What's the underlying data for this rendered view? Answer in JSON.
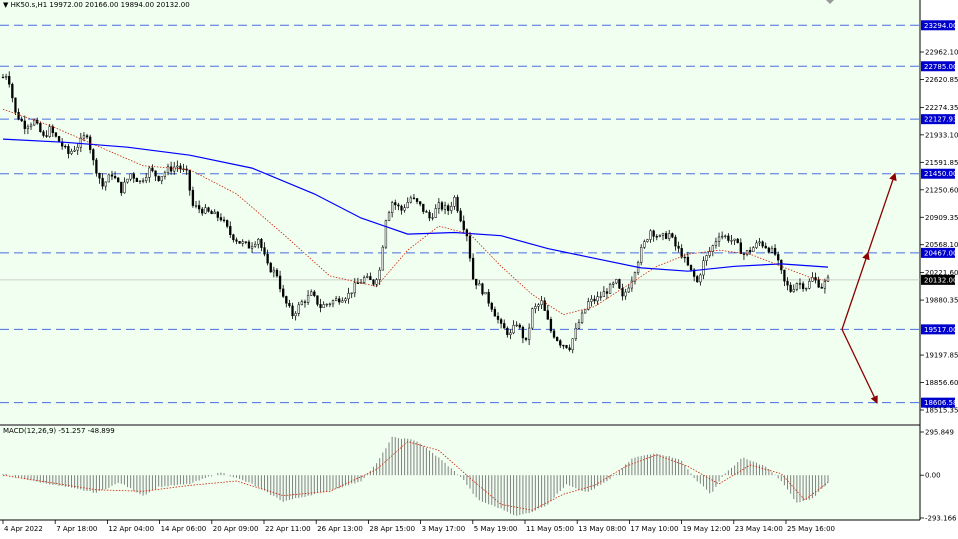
{
  "header": {
    "symbol_info": "HK50.s,H1  19972.00 20166.00 19894.00 20132.00"
  },
  "macd_header": "MACD(12,26,9) -51.257 -48.899",
  "colors": {
    "background": "#f0fff0",
    "ma_slow": "#0000ff",
    "ma_fast": "#cc2200",
    "level_line": "#4a6ee0",
    "label_bg": "#0000cc",
    "arrow": "#8b0000",
    "candle": "#000000"
  },
  "chart_data": [
    {
      "type": "candlestick",
      "title": "HK50.s,H1",
      "ylim": [
        18350,
        23400
      ],
      "yticks": [
        "22962.10",
        "22620.85",
        "22274.35",
        "21933.10",
        "21591.85",
        "21250.60",
        "20909.35",
        "20568.10",
        "20221.60",
        "19880.35",
        "19197.85",
        "18856.60",
        "18515.35"
      ],
      "ytick_values": [
        22962.1,
        22620.85,
        22274.35,
        21933.1,
        21591.85,
        21250.6,
        20909.35,
        20568.1,
        20221.6,
        19880.35,
        19197.85,
        18856.6,
        18515.35
      ],
      "xticks": [
        "4 Apr 2022",
        "7 Apr 18:00",
        "12 Apr 04:00",
        "14 Apr 06:00",
        "20 Apr 09:00",
        "22 Apr 11:00",
        "26 Apr 13:00",
        "28 Apr 15:00",
        "3 May 17:00",
        "5 May 19:00",
        "11 May 05:00",
        "13 May 08:00",
        "17 May 10:00",
        "19 May 12:00",
        "23 May 14:00",
        "25 May 16:00"
      ],
      "levels": [
        {
          "value": 23294.0,
          "label": "23294.00"
        },
        {
          "value": 22785.0,
          "label": "22785.00"
        },
        {
          "value": 22127.93,
          "label": "22127.93"
        },
        {
          "value": 21450.0,
          "label": "21450.00"
        },
        {
          "value": 20467.0,
          "label": "20467.00"
        },
        {
          "value": 19517.0,
          "label": "19517.00"
        },
        {
          "value": 18606.58,
          "label": "18606.58"
        }
      ],
      "current_price": {
        "value": 20132.0,
        "label": "20132.00"
      },
      "price_path": [
        [
          0,
          22650
        ],
        [
          3,
          22700
        ],
        [
          8,
          22200
        ],
        [
          14,
          22050
        ],
        [
          20,
          22100
        ],
        [
          26,
          21900
        ],
        [
          30,
          22000
        ],
        [
          36,
          21850
        ],
        [
          42,
          21700
        ],
        [
          48,
          21800
        ],
        [
          54,
          21950
        ],
        [
          58,
          21600
        ],
        [
          64,
          21300
        ],
        [
          70,
          21450
        ],
        [
          76,
          21250
        ],
        [
          82,
          21450
        ],
        [
          88,
          21350
        ],
        [
          94,
          21500
        ],
        [
          100,
          21400
        ],
        [
          106,
          21500
        ],
        [
          112,
          21550
        ],
        [
          118,
          21450
        ],
        [
          122,
          21050
        ],
        [
          128,
          21000
        ],
        [
          134,
          20950
        ],
        [
          140,
          20900
        ],
        [
          146,
          20700
        ],
        [
          152,
          20600
        ],
        [
          158,
          20550
        ],
        [
          164,
          20650
        ],
        [
          170,
          20300
        ],
        [
          176,
          20200
        ],
        [
          180,
          19900
        ],
        [
          186,
          19700
        ],
        [
          192,
          19850
        ],
        [
          198,
          19950
        ],
        [
          204,
          19800
        ],
        [
          210,
          19850
        ],
        [
          216,
          19900
        ],
        [
          222,
          19950
        ],
        [
          226,
          20050
        ],
        [
          232,
          20150
        ],
        [
          238,
          20100
        ],
        [
          242,
          20250
        ],
        [
          246,
          20900
        ],
        [
          250,
          21100
        ],
        [
          256,
          21000
        ],
        [
          262,
          21150
        ],
        [
          268,
          21050
        ],
        [
          274,
          20900
        ],
        [
          280,
          21050
        ],
        [
          286,
          21000
        ],
        [
          290,
          21150
        ],
        [
          294,
          20900
        ],
        [
          298,
          20700
        ],
        [
          302,
          20150
        ],
        [
          308,
          20000
        ],
        [
          314,
          19800
        ],
        [
          320,
          19550
        ],
        [
          326,
          19450
        ],
        [
          330,
          19600
        ],
        [
          336,
          19350
        ],
        [
          340,
          19750
        ],
        [
          346,
          19850
        ],
        [
          352,
          19500
        ],
        [
          358,
          19350
        ],
        [
          364,
          19300
        ],
        [
          370,
          19600
        ],
        [
          376,
          19850
        ],
        [
          382,
          19900
        ],
        [
          388,
          20000
        ],
        [
          394,
          20100
        ],
        [
          398,
          19900
        ],
        [
          404,
          20150
        ],
        [
          410,
          20500
        ],
        [
          416,
          20750
        ],
        [
          422,
          20650
        ],
        [
          428,
          20700
        ],
        [
          432,
          20550
        ],
        [
          436,
          20450
        ],
        [
          440,
          20300
        ],
        [
          446,
          20100
        ],
        [
          450,
          20350
        ],
        [
          456,
          20550
        ],
        [
          460,
          20700
        ],
        [
          466,
          20650
        ],
        [
          470,
          20600
        ],
        [
          476,
          20450
        ],
        [
          480,
          20500
        ],
        [
          486,
          20600
        ],
        [
          490,
          20550
        ],
        [
          496,
          20450
        ],
        [
          502,
          20100
        ],
        [
          506,
          20000
        ],
        [
          510,
          20100
        ],
        [
          516,
          20050
        ],
        [
          520,
          20150
        ],
        [
          526,
          20050
        ],
        [
          530,
          20132
        ]
      ],
      "ma_slow": [
        [
          0,
          21880
        ],
        [
          40,
          21840
        ],
        [
          80,
          21780
        ],
        [
          120,
          21680
        ],
        [
          160,
          21520
        ],
        [
          200,
          21200
        ],
        [
          230,
          20900
        ],
        [
          260,
          20700
        ],
        [
          290,
          20720
        ],
        [
          320,
          20680
        ],
        [
          350,
          20520
        ],
        [
          380,
          20400
        ],
        [
          410,
          20280
        ],
        [
          440,
          20240
        ],
        [
          470,
          20300
        ],
        [
          500,
          20330
        ],
        [
          530,
          20290
        ]
      ],
      "ma_fast": [
        [
          0,
          22250
        ],
        [
          30,
          22050
        ],
        [
          60,
          21800
        ],
        [
          90,
          21550
        ],
        [
          120,
          21500
        ],
        [
          150,
          21200
        ],
        [
          180,
          20700
        ],
        [
          210,
          20180
        ],
        [
          240,
          20050
        ],
        [
          260,
          20500
        ],
        [
          280,
          20800
        ],
        [
          300,
          20700
        ],
        [
          320,
          20300
        ],
        [
          340,
          19950
        ],
        [
          360,
          19700
        ],
        [
          380,
          19800
        ],
        [
          400,
          20050
        ],
        [
          420,
          20300
        ],
        [
          440,
          20450
        ],
        [
          460,
          20500
        ],
        [
          480,
          20450
        ],
        [
          500,
          20300
        ],
        [
          520,
          20150
        ],
        [
          530,
          20120
        ]
      ],
      "projection": {
        "from": 19517.0,
        "up_mid": 20467.0,
        "up_target": 21450.0,
        "down_target": 18606.58
      }
    },
    {
      "type": "bar",
      "title": "MACD(12,26,9) -51.257 -48.899",
      "ylim": [
        -293.166,
        295.849
      ],
      "yticks": [
        "295.849",
        "0.00",
        "-293.166"
      ],
      "ytick_values": [
        295.849,
        0,
        -293.166
      ],
      "macd_path": [
        [
          0,
          10
        ],
        [
          20,
          -40
        ],
        [
          45,
          -90
        ],
        [
          60,
          -120
        ],
        [
          75,
          -50
        ],
        [
          90,
          -140
        ],
        [
          100,
          -80
        ],
        [
          120,
          -60
        ],
        [
          140,
          20
        ],
        [
          160,
          -60
        ],
        [
          180,
          -180
        ],
        [
          200,
          -130
        ],
        [
          215,
          -90
        ],
        [
          230,
          -40
        ],
        [
          240,
          80
        ],
        [
          250,
          260
        ],
        [
          265,
          240
        ],
        [
          280,
          120
        ],
        [
          295,
          -20
        ],
        [
          305,
          -170
        ],
        [
          320,
          -230
        ],
        [
          330,
          -280
        ],
        [
          340,
          -250
        ],
        [
          350,
          -200
        ],
        [
          362,
          -60
        ],
        [
          375,
          -120
        ],
        [
          390,
          -30
        ],
        [
          405,
          120
        ],
        [
          420,
          150
        ],
        [
          435,
          110
        ],
        [
          445,
          -30
        ],
        [
          455,
          -130
        ],
        [
          462,
          -10
        ],
        [
          475,
          120
        ],
        [
          490,
          60
        ],
        [
          500,
          -40
        ],
        [
          510,
          -190
        ],
        [
          520,
          -160
        ],
        [
          530,
          -51
        ]
      ],
      "signal_path": [
        [
          0,
          0
        ],
        [
          30,
          -50
        ],
        [
          60,
          -100
        ],
        [
          90,
          -110
        ],
        [
          120,
          -70
        ],
        [
          150,
          -40
        ],
        [
          180,
          -140
        ],
        [
          210,
          -110
        ],
        [
          240,
          40
        ],
        [
          260,
          230
        ],
        [
          280,
          170
        ],
        [
          300,
          -20
        ],
        [
          320,
          -200
        ],
        [
          340,
          -240
        ],
        [
          360,
          -130
        ],
        [
          380,
          -70
        ],
        [
          400,
          60
        ],
        [
          420,
          140
        ],
        [
          440,
          60
        ],
        [
          460,
          -60
        ],
        [
          480,
          70
        ],
        [
          500,
          10
        ],
        [
          515,
          -170
        ],
        [
          530,
          -49
        ]
      ]
    }
  ]
}
